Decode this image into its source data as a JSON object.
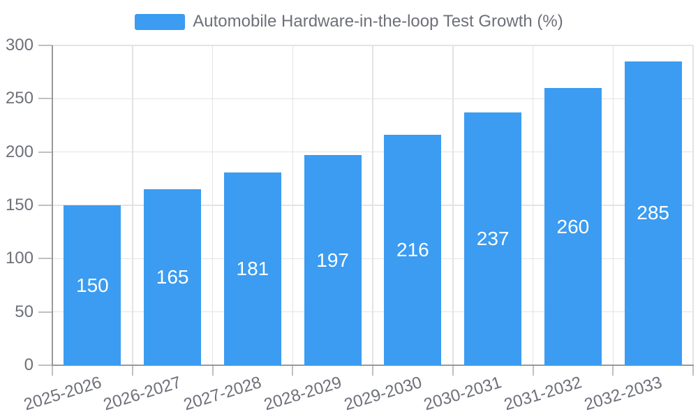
{
  "chart_data": {
    "type": "bar",
    "title": "Automobile Hardware-in-the-loop Test Growth (%)",
    "categories": [
      "2025-2026",
      "2026-2027",
      "2027-2028",
      "2028-2029",
      "2029-2030",
      "2030-2031",
      "2031-2032",
      "2032-2033"
    ],
    "values": [
      150,
      165,
      181,
      197,
      216,
      237,
      260,
      285
    ],
    "y_ticks": [
      0,
      50,
      100,
      150,
      200,
      250,
      300
    ],
    "ylim": [
      0,
      300
    ],
    "xlabel": "",
    "ylabel": "",
    "legend_position": "top-center",
    "grid": "on",
    "value_labels": "inside-center",
    "colors": {
      "bar": "#3b9cf1",
      "bar_value_text": "#ffffff",
      "axis_line": "#999999",
      "tick": "#c0c0c0",
      "gridline": "#e3e3e3",
      "axis_text": "#6e7079",
      "legend_text": "#6e7079",
      "background": "#ffffff"
    }
  }
}
